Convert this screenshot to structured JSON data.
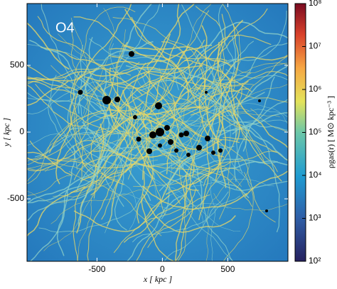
{
  "chart_data": {
    "type": "image",
    "annotation": "O4",
    "xlabel": "x [ kpc ]",
    "ylabel": "y [ kpc ]",
    "xlim": [
      -1035,
      960
    ],
    "xticks": [
      -500,
      0,
      500
    ],
    "ylim": [
      -968,
      963
    ],
    "yticks": [
      -500,
      0,
      500
    ],
    "colorbar": {
      "label": "ρgas(r) [ M⊙ kpc⁻³ ]",
      "log": true,
      "lim": [
        100,
        100000000
      ],
      "ticks": [
        {
          "value": 100,
          "label": "10²"
        },
        {
          "value": 1000,
          "label": "10³"
        },
        {
          "value": 10000,
          "label": "10⁴"
        },
        {
          "value": 100000,
          "label": "10⁵"
        },
        {
          "value": 1000000,
          "label": "10⁶"
        },
        {
          "value": 10000000,
          "label": "10⁷"
        },
        {
          "value": 100000000,
          "label": "10⁸"
        }
      ]
    }
  }
}
